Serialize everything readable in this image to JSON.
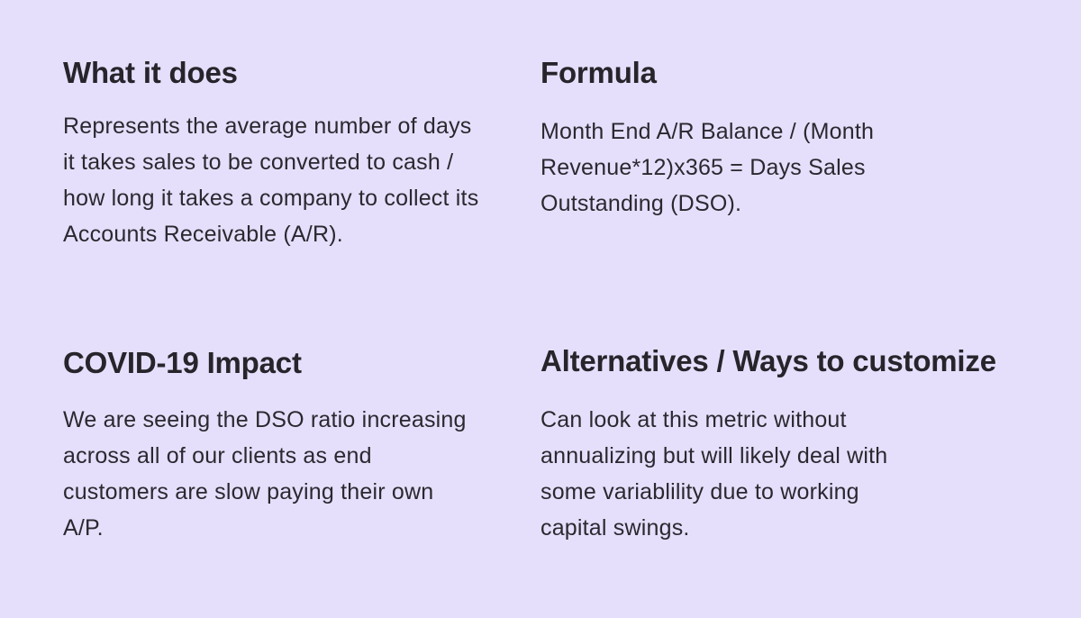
{
  "sections": {
    "what_it_does": {
      "title": "What it does",
      "body": "Represents the average number of days it takes sales to be converted to cash / how long it takes a company to collect its Accounts Receivable (A/R)."
    },
    "formula": {
      "title": "Formula",
      "body": "Month End A/R Balance / (Month Revenue*12)x365 = Days Sales Outstanding (DSO)."
    },
    "covid_impact": {
      "title": "COVID-19 Impact",
      "body": "We are seeing the DSO ratio increasing across all of our clients as end customers are slow paying their own A/P."
    },
    "alternatives": {
      "title": "Alternatives / Ways to customize",
      "body": "Can look at this metric without annualizing but will likely deal with some variablility due to working capital swings."
    }
  },
  "colors": {
    "background": "#e5dffb",
    "text": "#27242b"
  }
}
